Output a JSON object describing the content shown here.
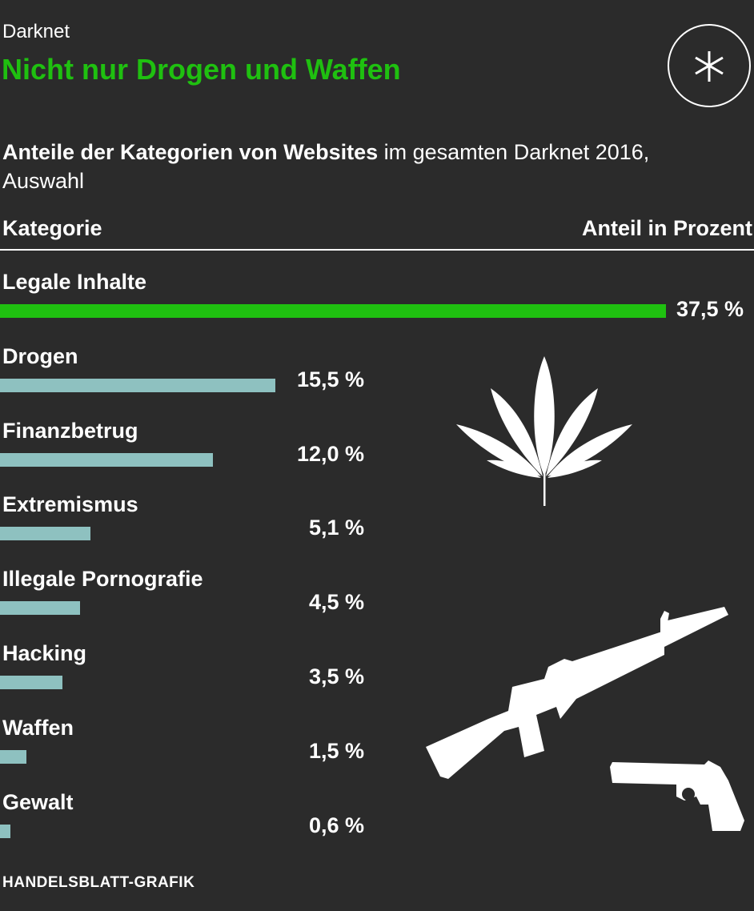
{
  "header": {
    "kicker": "Darknet",
    "title": "Nicht nur Drogen und Waffen",
    "subtitle_bold": "Anteile der Kategorien von Websites",
    "subtitle_rest": " im gesamten Darknet 2016, Auswahl"
  },
  "chart_data": {
    "type": "bar",
    "orientation": "horizontal",
    "column_headers": {
      "category": "Kategorie",
      "value": "Anteil in Prozent"
    },
    "categories": [
      "Legale Inhalte",
      "Drogen",
      "Finanzbetrug",
      "Extremismus",
      "Illegale Pornografie",
      "Hacking",
      "Waffen",
      "Gewalt"
    ],
    "values": [
      37.5,
      15.5,
      12.0,
      5.1,
      4.5,
      3.5,
      1.5,
      0.6
    ],
    "value_labels": [
      "37,5 %",
      "15,5 %",
      "12,0 %",
      "5,1 %",
      "4,5 %",
      "3,5 %",
      "1,5 %",
      "0,6 %"
    ],
    "unit": "%",
    "colors": {
      "highlight": "#1fc010",
      "default": "#8ec1c0",
      "background": "#2b2b2b"
    },
    "grid": false
  },
  "icons": [
    "asterisk-logo-icon",
    "cannabis-leaf-icon",
    "rifle-icon",
    "revolver-icon"
  ],
  "source": "HANDELSBLATT-GRAFIK"
}
